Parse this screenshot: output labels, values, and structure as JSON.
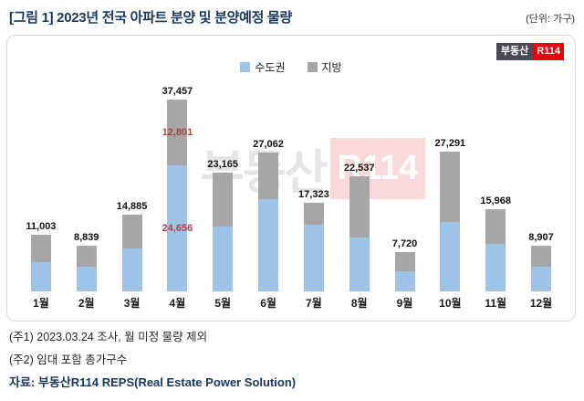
{
  "header": {
    "title": "[그림 1] 2023년 전국 아파트 분양 및 분양예정 물량",
    "unit": "(단위: 가구)"
  },
  "logo": {
    "left": "부동산",
    "right": "R114"
  },
  "watermark": {
    "left": "부동산",
    "right": "R114"
  },
  "legend": [
    {
      "label": "수도권",
      "color": "#9DC3E6"
    },
    {
      "label": "지방",
      "color": "#A6A6A6"
    }
  ],
  "chart_data": {
    "type": "bar",
    "stacked": true,
    "title": "2023년 전국 아파트 분양 및 분양예정 물량",
    "unit_label": "가구",
    "categories": [
      "1월",
      "2월",
      "3월",
      "4월",
      "5월",
      "6월",
      "7월",
      "8월",
      "9월",
      "10월",
      "11월",
      "12월"
    ],
    "series": [
      {
        "name": "수도권",
        "color": "#9DC3E6",
        "values": [
          5700,
          4800,
          8300,
          24656,
          12700,
          18000,
          13000,
          10600,
          4000,
          13500,
          9200,
          4800
        ]
      },
      {
        "name": "지방",
        "color": "#A6A6A6",
        "values": [
          5303,
          4039,
          6585,
          12801,
          10465,
          9062,
          4323,
          11937,
          3720,
          13791,
          6768,
          4107
        ]
      }
    ],
    "totals": [
      11003,
      8839,
      14885,
      37457,
      23165,
      27062,
      17323,
      22537,
      7720,
      27291,
      15968,
      8907
    ],
    "total_labels": [
      "11,003",
      "8,839",
      "14,885",
      "37,457",
      "23,165",
      "27,062",
      "17,323",
      "22,537",
      "7,720",
      "27,291",
      "15,968",
      "8,907"
    ],
    "segment_annotations": {
      "month": "4월",
      "color": "#A94442",
      "entries": [
        {
          "series": "지방",
          "text": "12,801",
          "value": 12801
        },
        {
          "series": "수도권",
          "text": "24,656",
          "value": 24656
        }
      ]
    },
    "ylim": [
      0,
      40000
    ],
    "legend_position": "top",
    "grid": false
  },
  "footnotes": {
    "note1": "(주1) 2023.03.24 조사, 월 미정 물량 제외",
    "note2": "(주2) 임대 포함 총가구수"
  },
  "source": "자료: 부동산R114 REPS(Real Estate Power Solution)"
}
